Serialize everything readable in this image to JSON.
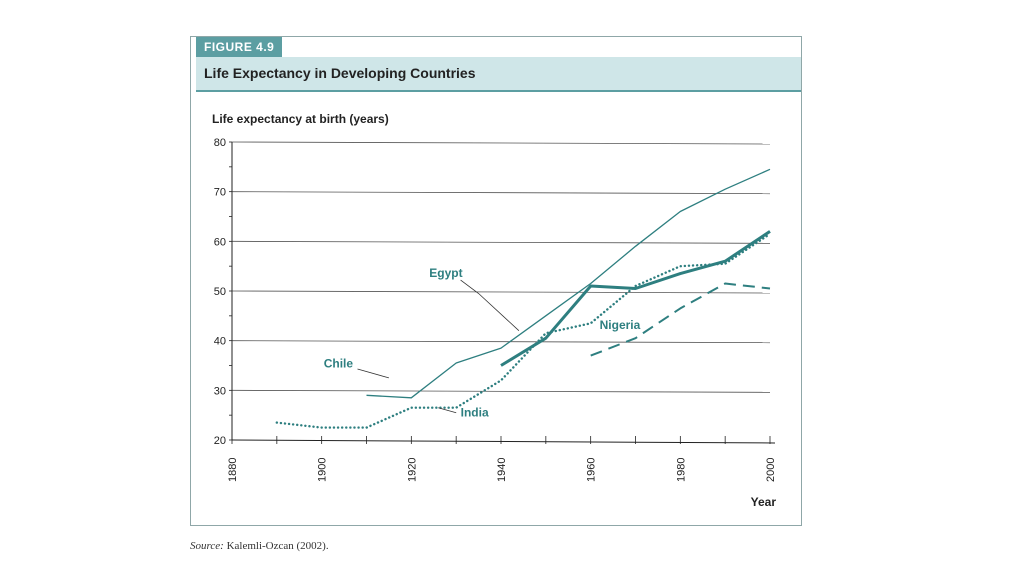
{
  "figure": {
    "tag": "FIGURE 4.9",
    "title": "Life Expectancy in Developing Countries"
  },
  "source": {
    "label": "Source:",
    "text": "Kalemli-Ozcan (2002)."
  },
  "colors": {
    "accent": "#5c9ea2",
    "header_bg": "#cfe6e8",
    "line": "#2e7f80",
    "grid": "#555555"
  },
  "chart_data": {
    "type": "line",
    "title": "Life Expectancy in Developing Countries",
    "ylabel": "Life expectancy at birth (years)",
    "xlabel": "Year",
    "xlim": [
      1880,
      2000
    ],
    "ylim": [
      20,
      80
    ],
    "xticks": [
      1880,
      1900,
      1920,
      1940,
      1960,
      1980,
      2000
    ],
    "yticks": [
      20,
      30,
      40,
      50,
      60,
      70,
      80
    ],
    "grid": true,
    "series": [
      {
        "name": "Chile",
        "style": "thin-solid",
        "x": [
          1910,
          1920,
          1930,
          1940,
          1950,
          1960,
          1970,
          1980,
          1990,
          2000
        ],
        "y": [
          29,
          28.5,
          35.5,
          38.5,
          45,
          51.5,
          59,
          66,
          70.5,
          74.5
        ]
      },
      {
        "name": "Egypt",
        "style": "thick-solid",
        "x": [
          1940,
          1950,
          1960,
          1970,
          1980,
          1990,
          2000
        ],
        "y": [
          35,
          40.5,
          51,
          50.5,
          53.5,
          56,
          62
        ]
      },
      {
        "name": "India",
        "style": "dotted",
        "x": [
          1890,
          1900,
          1910,
          1920,
          1930,
          1940,
          1950,
          1960,
          1970,
          1980,
          1990,
          2000
        ],
        "y": [
          23.5,
          22.5,
          22.5,
          26.5,
          26.5,
          32,
          41.5,
          43.5,
          51,
          55,
          55.5,
          61.5
        ]
      },
      {
        "name": "Nigeria",
        "style": "dashed",
        "x": [
          1960,
          1970,
          1980,
          1990,
          2000
        ],
        "y": [
          37,
          40.5,
          46.5,
          51.5,
          50.5
        ]
      }
    ]
  }
}
